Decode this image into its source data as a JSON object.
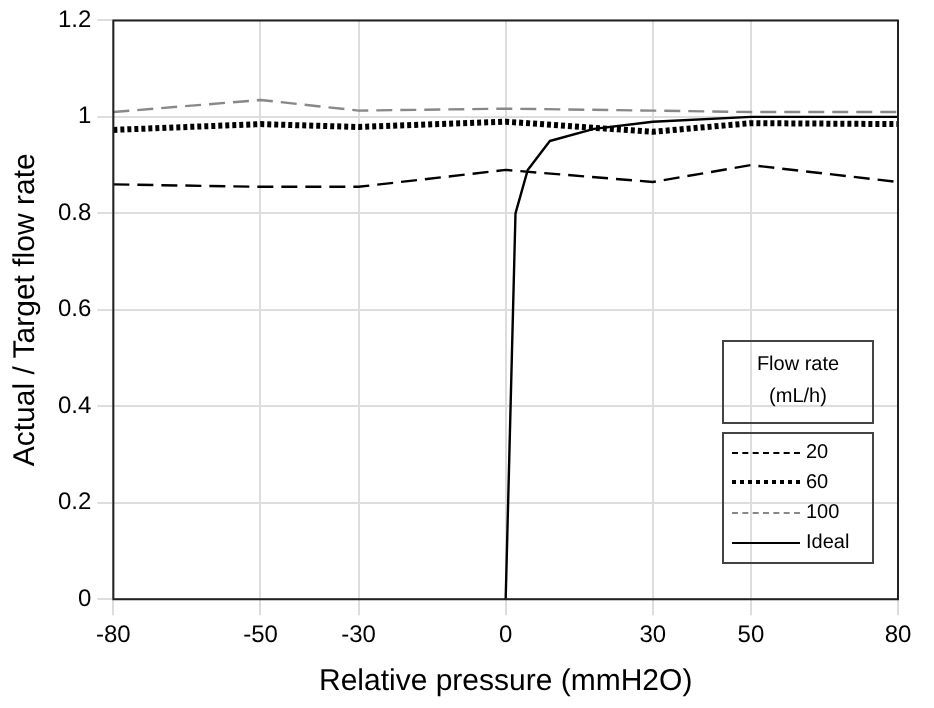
{
  "chart_data": {
    "type": "line",
    "xlabel": "Relative pressure (mmH2O)",
    "ylabel": "Actual / Target flow rate",
    "legend_title": "Flow rate (mL/h)",
    "legend": "bottom right",
    "grid": true,
    "marker": "none",
    "xlim": [
      -80,
      80
    ],
    "xticks": [
      -80,
      -50,
      -30,
      0,
      30,
      50,
      80
    ],
    "ylim": [
      0,
      1.2
    ],
    "yticks": [
      0,
      0.2,
      0.4,
      0.6,
      0.8,
      1,
      1.2
    ],
    "series": [
      {
        "name": "20",
        "color": "#000000",
        "line_style": "dashed",
        "x": [
          -80,
          -50,
          -30,
          0,
          30,
          50,
          80
        ],
        "values": [
          0.86,
          0.855,
          0.855,
          0.89,
          0.865,
          0.9,
          0.865
        ]
      },
      {
        "name": "60",
        "color": "#000000",
        "line_style": "dotted",
        "x": [
          -80,
          -50,
          -30,
          0,
          30,
          50,
          80
        ],
        "values": [
          0.973,
          0.985,
          0.979,
          0.99,
          0.969,
          0.987,
          0.985
        ]
      },
      {
        "name": "100",
        "color": "#888888",
        "line_style": "dashed",
        "x": [
          -80,
          -50,
          -30,
          0,
          30,
          50,
          80
        ],
        "values": [
          1.01,
          1.035,
          1.013,
          1.017,
          1.013,
          1.01,
          1.01
        ]
      },
      {
        "name": "Ideal",
        "color": "#000000",
        "line_style": "solid",
        "x": [
          0,
          2,
          4.5,
          9,
          18,
          30,
          50,
          80
        ],
        "values": [
          0,
          0.8,
          0.89,
          0.95,
          0.975,
          0.99,
          1,
          1
        ]
      }
    ]
  }
}
